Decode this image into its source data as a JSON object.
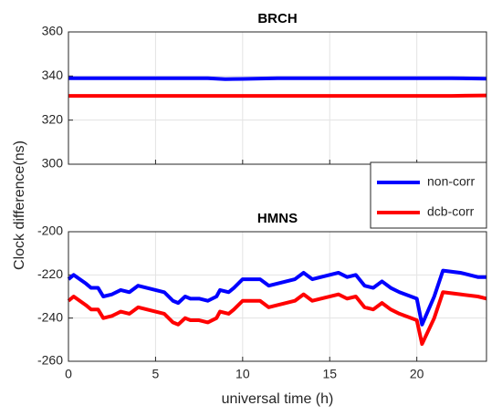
{
  "chart_data": [
    {
      "type": "line",
      "title": "BRCH",
      "ylabel": "Clock difference(ns)",
      "x": [
        0,
        2,
        4,
        6,
        8,
        9,
        10,
        12,
        14,
        16,
        18,
        20,
        22,
        24
      ],
      "series": [
        {
          "name": "non-corr",
          "color": "#0000ff",
          "values": [
            339,
            339,
            339,
            339,
            339,
            338.6,
            338.7,
            339,
            339,
            339,
            339,
            339,
            339,
            338.8
          ]
        },
        {
          "name": "dcb-corr",
          "color": "#ff0000",
          "values": [
            331,
            331,
            331,
            331,
            331,
            331,
            331,
            331,
            331,
            331,
            331,
            331,
            331,
            331.2
          ]
        }
      ],
      "xlim": [
        0,
        24
      ],
      "xticks": [
        0,
        5,
        10,
        15,
        20
      ],
      "ylim": [
        300,
        360
      ],
      "yticks": [
        300,
        320,
        340,
        360
      ],
      "grid": true,
      "legend": "lower right"
    },
    {
      "type": "line",
      "title": "HMNS",
      "xlabel": "universal time (h)",
      "x": [
        0,
        0.3,
        1,
        1.3,
        1.7,
        2,
        2.5,
        3,
        3.5,
        4,
        4.5,
        5,
        5.5,
        6,
        6.3,
        6.7,
        7,
        7.5,
        8,
        8.5,
        8.7,
        9.2,
        9.5,
        10,
        11,
        11.5,
        12,
        12.5,
        13,
        13.5,
        14,
        15.5,
        16,
        16.5,
        17,
        17.5,
        18,
        18.5,
        19,
        20,
        20.3,
        21,
        21.5,
        22.5,
        23.5,
        24
      ],
      "series": [
        {
          "color": "#0000ff",
          "values": [
            -222,
            -220,
            -224,
            -226,
            -226,
            -230,
            -229,
            -227,
            -228,
            -225,
            -226,
            -227,
            -228,
            -232,
            -233,
            -230,
            -231,
            -231,
            -232,
            -230,
            -227,
            -228,
            -226,
            -222,
            -222,
            -225,
            -224,
            -223,
            -222,
            -219,
            -222,
            -219,
            -221,
            -220,
            -225,
            -226,
            -223,
            -226,
            -228,
            -231,
            -243,
            -230,
            -218,
            -219,
            -221,
            -221
          ]
        },
        {
          "color": "#ff0000",
          "values": [
            -232,
            -230,
            -234,
            -236,
            -236,
            -240,
            -239,
            -237,
            -238,
            -235,
            -236,
            -237,
            -238,
            -242,
            -243,
            -240,
            -241,
            -241,
            -242,
            -240,
            -237,
            -238,
            -236,
            -232,
            -232,
            -235,
            -234,
            -233,
            -232,
            -229,
            -232,
            -229,
            -231,
            -230,
            -235,
            -236,
            -233,
            -236,
            -238,
            -241,
            -252,
            -240,
            -228,
            -229,
            -230,
            -231
          ]
        }
      ],
      "xlim": [
        0,
        24
      ],
      "xticks": [
        0,
        5,
        10,
        15,
        20
      ],
      "ylim": [
        -260,
        -200
      ],
      "yticks": [
        -260,
        -240,
        -220,
        -200
      ],
      "grid": true
    }
  ]
}
